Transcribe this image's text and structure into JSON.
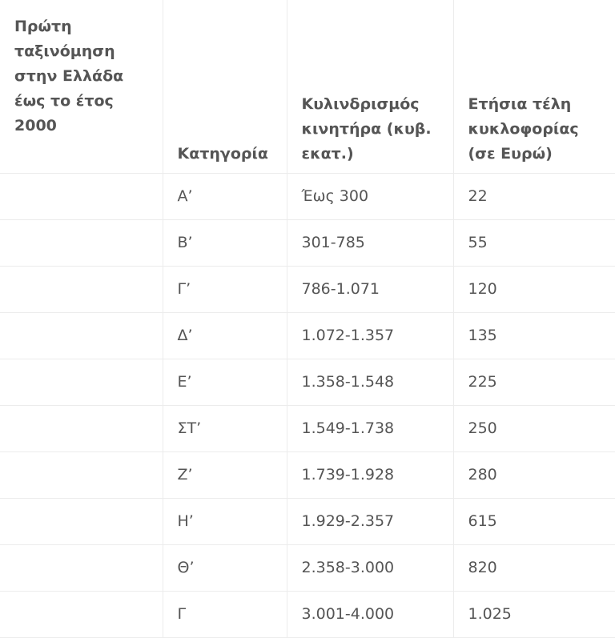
{
  "table": {
    "header": [
      "Πρώτη ταξινόμηση στην Ελλάδα έως το έτος 2000",
      "Κατηγορία",
      "Κυλινδρισμός κινητήρα (κυβ. εκατ.)",
      "Ετήσια τέλη κυκλοφορίας (σε Ευρώ)"
    ],
    "rows": [
      [
        "Α’",
        "Έως 300",
        "22"
      ],
      [
        "Β’",
        "301-785",
        "55"
      ],
      [
        "Γ’",
        "786-1.071",
        "120"
      ],
      [
        "Δ’",
        "1.072-1.357",
        "135"
      ],
      [
        "Ε’",
        "1.358-1.548",
        "225"
      ],
      [
        "ΣΤ’",
        "1.549-1.738",
        "250"
      ],
      [
        "Ζ’",
        "1.739-1.928",
        "280"
      ],
      [
        "Η’",
        "1.929-2.357",
        "615"
      ],
      [
        "Θ’",
        "2.358-3.000",
        "820"
      ],
      [
        "Γ",
        "3.001-4.000",
        "1.025"
      ]
    ]
  }
}
